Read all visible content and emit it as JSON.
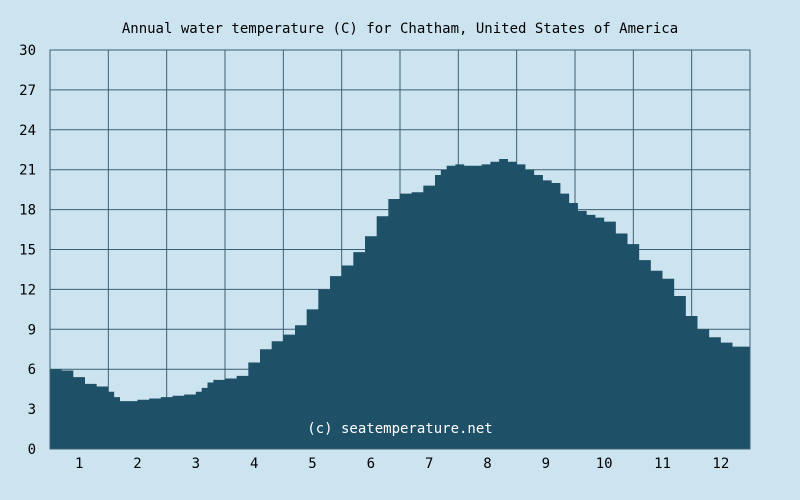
{
  "chart_data": {
    "type": "area",
    "title": "Annual water temperature (C) for Chatham, United States of America",
    "watermark": "(c) seatemperature.net",
    "x_ticks": [
      "1",
      "2",
      "3",
      "4",
      "5",
      "6",
      "7",
      "8",
      "9",
      "10",
      "11",
      "12"
    ],
    "y_ticks": [
      "0",
      "3",
      "6",
      "9",
      "12",
      "15",
      "18",
      "21",
      "24",
      "27",
      "30"
    ],
    "ylim": [
      0,
      30
    ],
    "xlim": [
      0.5,
      12.5
    ],
    "grid": true,
    "colors": {
      "background": "#cce3f0",
      "fill": "#1e5068",
      "grid": "#3d5f73"
    },
    "series": [
      {
        "x": [
          0.5,
          0.7,
          0.9,
          1.1,
          1.3,
          1.5,
          1.6,
          1.7,
          1.8,
          2.0,
          2.2,
          2.4,
          2.6,
          2.8,
          3.0,
          3.1,
          3.2,
          3.3,
          3.5,
          3.7,
          3.9,
          4.1,
          4.3,
          4.5,
          4.7,
          4.9,
          5.1,
          5.3,
          5.5,
          5.7,
          5.9,
          6.1,
          6.3,
          6.5,
          6.7,
          6.9,
          7.1,
          7.2,
          7.3,
          7.45,
          7.6,
          7.75,
          7.9,
          8.05,
          8.2,
          8.35,
          8.5,
          8.65,
          8.8,
          8.95,
          9.1,
          9.25,
          9.4,
          9.55,
          9.7,
          9.85,
          10.0,
          10.2,
          10.4,
          10.6,
          10.8,
          11.0,
          11.2,
          11.4,
          11.6,
          11.8,
          12.0,
          12.2,
          12.5
        ],
        "values": [
          6.0,
          5.9,
          5.4,
          4.9,
          4.7,
          4.3,
          3.9,
          3.6,
          3.6,
          3.7,
          3.8,
          3.9,
          4.0,
          4.1,
          4.3,
          4.6,
          5.0,
          5.2,
          5.3,
          5.5,
          6.5,
          7.5,
          8.1,
          8.6,
          9.3,
          10.5,
          12.0,
          13.0,
          13.8,
          14.8,
          16.0,
          17.5,
          18.8,
          19.2,
          19.3,
          19.8,
          20.6,
          21.0,
          21.3,
          21.4,
          21.3,
          21.3,
          21.4,
          21.6,
          21.8,
          21.6,
          21.4,
          21.0,
          20.6,
          20.2,
          20.0,
          19.2,
          18.5,
          17.9,
          17.6,
          17.4,
          17.1,
          16.2,
          15.4,
          14.2,
          13.4,
          12.8,
          11.5,
          10.0,
          9.0,
          8.4,
          8.0,
          7.7,
          6.6
        ]
      }
    ]
  }
}
